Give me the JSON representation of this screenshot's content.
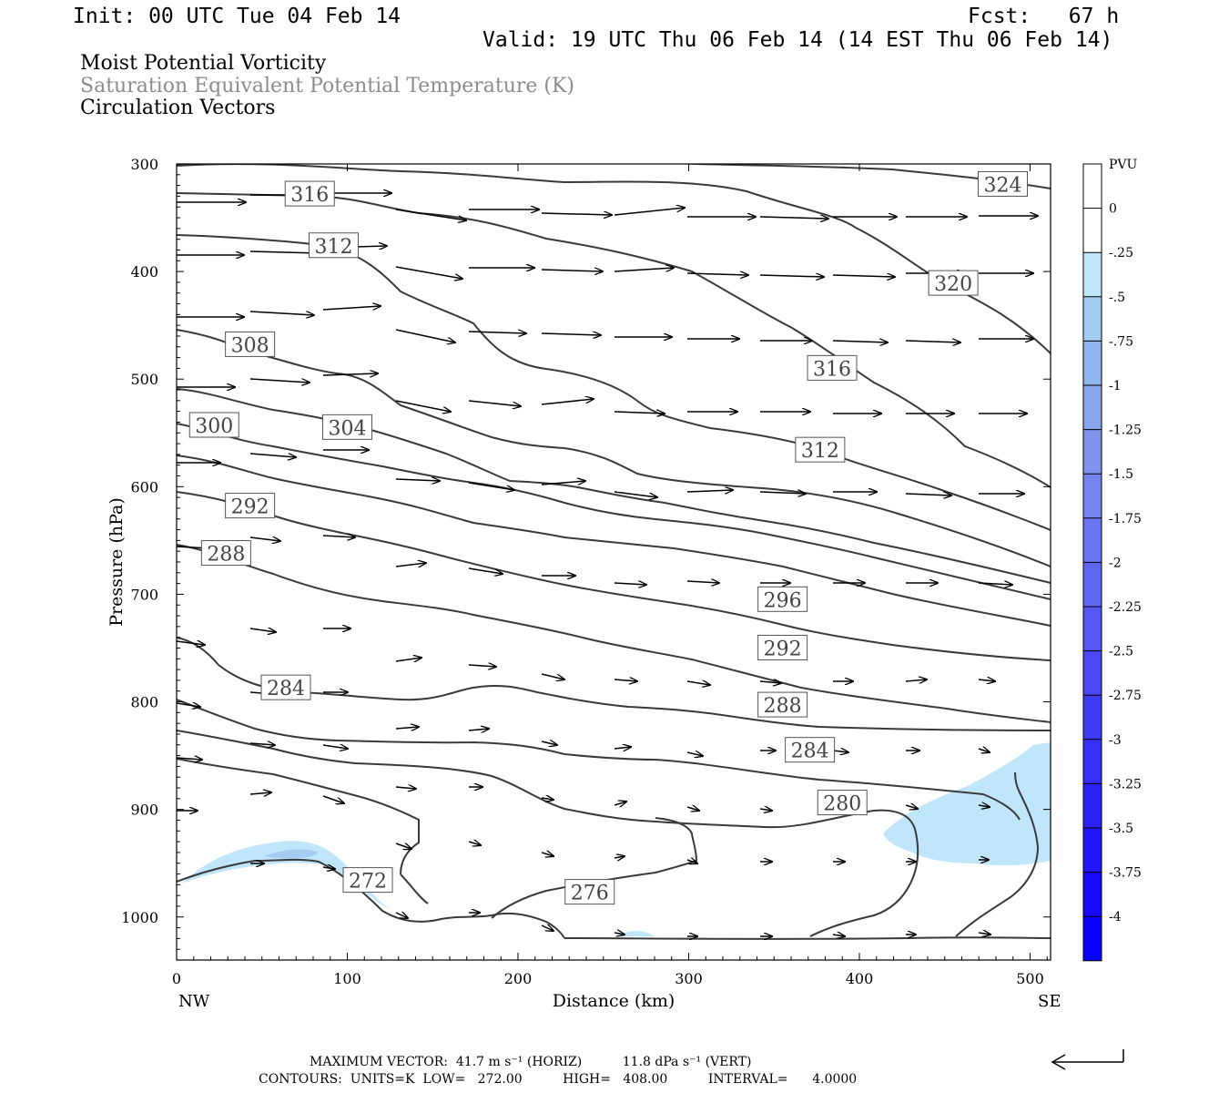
{
  "header": {
    "init": "Init: 00 UTC Tue 04 Feb 14",
    "fcst": "Fcst:   67 h",
    "valid": "Valid: 19 UTC Thu 06 Feb 14 (14 EST Thu 06 Feb 14)"
  },
  "titles": {
    "line1": "Moist Potential Vorticity",
    "line2": "Saturation Equivalent Potential Temperature (K)",
    "line3": "Circulation Vectors"
  },
  "colors": {
    "contour": "#3a3a3a",
    "shade_light": "#bfe6fb",
    "shade_mid": "#a4cdf3",
    "axis": "#000000"
  },
  "chart_data": {
    "type": "cross-section",
    "xlabel": "Distance (km)",
    "ylabel": "Pressure (hPa)",
    "xlim": [
      0,
      512
    ],
    "ylim": [
      1040,
      300
    ],
    "x_ticks": [
      0,
      100,
      200,
      300,
      400,
      500
    ],
    "y_ticks": [
      300,
      400,
      500,
      600,
      700,
      800,
      900,
      1000
    ],
    "x_end_labels": {
      "left": "NW",
      "right": "SE"
    },
    "contour_labels": [
      {
        "text": "316",
        "x": 78,
        "p": 328
      },
      {
        "text": "312",
        "x": 92,
        "p": 376
      },
      {
        "text": "324",
        "x": 484,
        "p": 319
      },
      {
        "text": "320",
        "x": 455,
        "p": 411
      },
      {
        "text": "316",
        "x": 384,
        "p": 490
      },
      {
        "text": "308",
        "x": 43,
        "p": 468
      },
      {
        "text": "304",
        "x": 100,
        "p": 545
      },
      {
        "text": "300",
        "x": 22,
        "p": 543
      },
      {
        "text": "312",
        "x": 377,
        "p": 566
      },
      {
        "text": "292",
        "x": 43,
        "p": 618
      },
      {
        "text": "288",
        "x": 29,
        "p": 662
      },
      {
        "text": "296",
        "x": 355,
        "p": 705
      },
      {
        "text": "292",
        "x": 355,
        "p": 750
      },
      {
        "text": "284",
        "x": 64,
        "p": 787
      },
      {
        "text": "288",
        "x": 355,
        "p": 803
      },
      {
        "text": "284",
        "x": 371,
        "p": 845
      },
      {
        "text": "280",
        "x": 390,
        "p": 894
      },
      {
        "text": "272",
        "x": 112,
        "p": 966
      },
      {
        "text": "276",
        "x": 242,
        "p": 977
      }
    ],
    "contours_theta_es_K": [
      272,
      276,
      280,
      284,
      288,
      292,
      296,
      300,
      304,
      308,
      312,
      316,
      320,
      324
    ],
    "colorbar": {
      "unit": "PVU",
      "labels": [
        "0",
        "-.25",
        "-.5",
        "-.75",
        "-1",
        "-1.25",
        "-1.5",
        "-1.75",
        "-2",
        "-2.25",
        "-2.5",
        "-2.75",
        "-3",
        "-3.25",
        "-3.5",
        "-3.75",
        "-4"
      ],
      "colors": [
        "#ffffff",
        "#ffffff",
        "#bfe6fb",
        "#a4cdf3",
        "#8fb4ee",
        "#8aa6ee",
        "#8093ef",
        "#7684f0",
        "#6b75f1",
        "#6068f2",
        "#5457f3",
        "#4a49f4",
        "#3f3cf5",
        "#3530f7",
        "#2a23f8",
        "#2016fa",
        "#150afc",
        "#0a00fe"
      ]
    },
    "mpv_regions": [
      "weak negative MPV (-0.25 to -0.75 PVU) near surface in NW and SE"
    ]
  },
  "footer": {
    "max_vector": "MAXIMUM VECTOR:  41.7 m s⁻¹ (HORIZ)          11.8 dPa s⁻¹ (VERT)",
    "contours": "CONTOURS:  UNITS=K  LOW=   272.00          HIGH=   408.00          INTERVAL=      4.0000"
  }
}
